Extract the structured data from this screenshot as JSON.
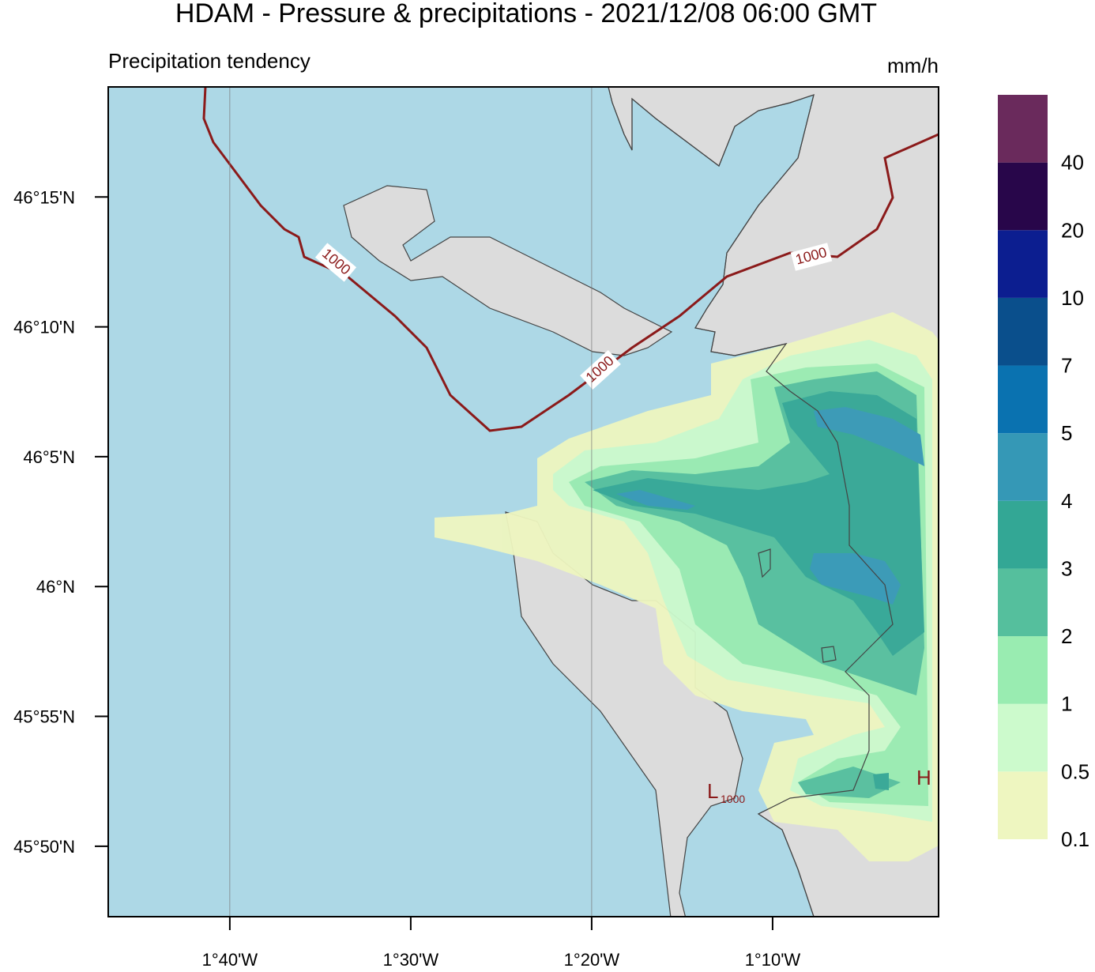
{
  "map": {
    "title": "HDAM - Pressure & precipitations  -  2021/12/08  06:00 GMT",
    "subtitle": "Precipitation tendency",
    "unit": "mm/h",
    "xlim": [
      -1.77866,
      -1.01378
    ],
    "ylim": [
      45.78811,
      46.32063
    ],
    "xticks": [
      {
        "value": -1.666667,
        "label": "1°40'W"
      },
      {
        "value": -1.5,
        "label": "1°30'W"
      },
      {
        "value": -1.333333,
        "label": "1°20'W"
      },
      {
        "value": -1.166667,
        "label": "1°10'W"
      }
    ],
    "yticks": [
      {
        "value": 46.25,
        "label": "46°15'N"
      },
      {
        "value": 46.166667,
        "label": "46°10'N"
      },
      {
        "value": 46.083333,
        "label": "46°5'N"
      },
      {
        "value": 46,
        "label": "46°N"
      },
      {
        "value": 45.916667,
        "label": "45°55'N"
      },
      {
        "value": 45.833333,
        "label": "45°50'N"
      }
    ],
    "colorbar": {
      "colors": [
        "#eef6c0",
        "#ccfacc",
        "#99ecb1",
        "#55bf9d",
        "#33a795",
        "#3598b6",
        "#0a72b0",
        "#0a4f8c",
        "#0c1e90",
        "#28064a",
        "#6a2a5c"
      ],
      "labels": [
        0.1,
        0.5,
        1,
        2,
        3,
        4,
        5,
        7,
        10,
        20,
        40
      ]
    },
    "contour_labels": [
      "1000",
      "1000",
      "1000"
    ],
    "low": {
      "label": "L",
      "value": "1000"
    },
    "high": {
      "label": "H"
    }
  }
}
